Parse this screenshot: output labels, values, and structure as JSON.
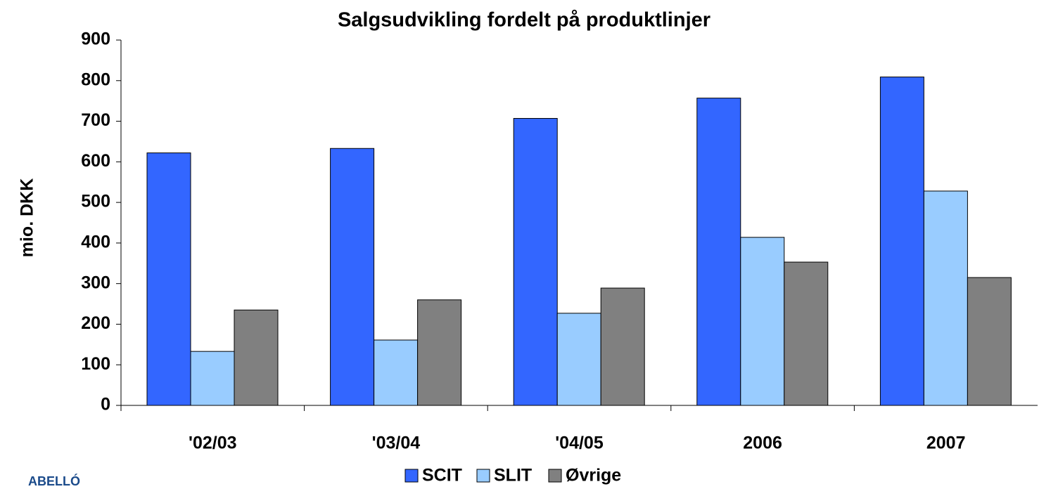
{
  "chart_data": {
    "type": "bar",
    "title": "Salgsudvikling fordelt på produktlinjer",
    "y_label": "mio. DKK",
    "categories": [
      "'02/03",
      "'03/04",
      "'04/05",
      "2006",
      "2007"
    ],
    "series": [
      {
        "name": "SCIT",
        "color": "#3366ff",
        "values": [
          622,
          633,
          707,
          757,
          809
        ]
      },
      {
        "name": "SLIT",
        "color": "#99ccff",
        "values": [
          133,
          161,
          227,
          414,
          528
        ]
      },
      {
        "name": "Øvrige",
        "color": "#808080",
        "values": [
          235,
          260,
          289,
          353,
          315
        ]
      }
    ],
    "ylim": [
      0,
      900
    ],
    "yticks": [
      0,
      100,
      200,
      300,
      400,
      500,
      600,
      700,
      800,
      900
    ],
    "grid": false,
    "legend": "bottom",
    "logo": "ABELLÓ"
  }
}
